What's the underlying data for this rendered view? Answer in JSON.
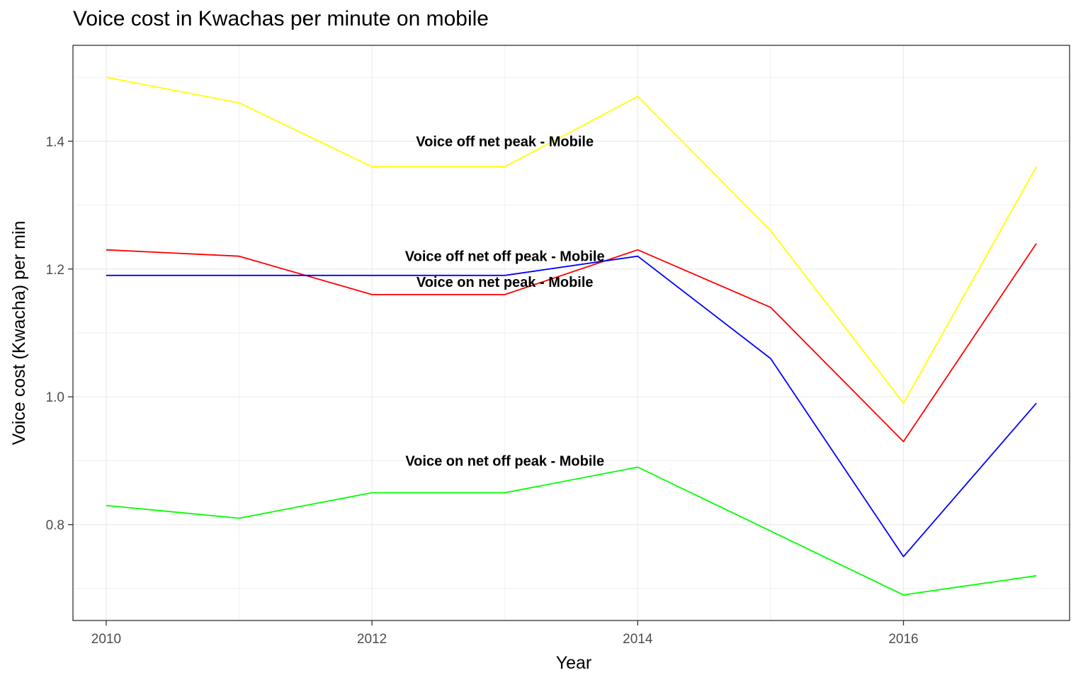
{
  "chart_data": {
    "type": "line",
    "title": "Voice cost in Kwachas per minute on mobile",
    "xlabel": "Year",
    "ylabel": "Voice cost (Kwacha) per min",
    "x": [
      2010,
      2011,
      2012,
      2013,
      2014,
      2015,
      2016,
      2017
    ],
    "xlim": [
      2009.75,
      2017.25
    ],
    "ylim": [
      0.65,
      1.55
    ],
    "x_ticks": [
      2010,
      2012,
      2014,
      2016
    ],
    "x_tick_labels": [
      "2010",
      "2012",
      "2014",
      "2016"
    ],
    "y_ticks": [
      0.8,
      1.0,
      1.2,
      1.4
    ],
    "y_tick_labels": [
      "0.8",
      "1.0",
      "1.2",
      "1.4"
    ],
    "grid": true,
    "legend": "none",
    "series": [
      {
        "name": "Voice off net peak - Mobile",
        "color": "#ffff00",
        "values": [
          1.5,
          1.46,
          1.36,
          1.36,
          1.47,
          1.26,
          0.99,
          1.36
        ],
        "label": {
          "text": "Voice off net peak - Mobile",
          "x": 2013.0,
          "y": 1.4
        }
      },
      {
        "name": "Voice off net off peak - Mobile",
        "color": "#ff0000",
        "values": [
          1.23,
          1.22,
          1.16,
          1.16,
          1.23,
          1.14,
          0.93,
          1.24
        ],
        "label": {
          "text": "Voice off net off peak - Mobile",
          "x": 2013.0,
          "y": 1.22
        }
      },
      {
        "name": "Voice on net peak - Mobile",
        "color": "#0000ff",
        "values": [
          1.19,
          1.19,
          1.19,
          1.19,
          1.22,
          1.06,
          0.75,
          0.99
        ],
        "label": {
          "text": "Voice on net peak - Mobile",
          "x": 2013.0,
          "y": 1.18
        }
      },
      {
        "name": "Voice on net off peak - Mobile",
        "color": "#00ff00",
        "values": [
          0.83,
          0.81,
          0.85,
          0.85,
          0.89,
          0.79,
          0.69,
          0.72
        ],
        "label": {
          "text": "Voice on net off peak - Mobile",
          "x": 2013.0,
          "y": 0.9
        }
      }
    ]
  }
}
